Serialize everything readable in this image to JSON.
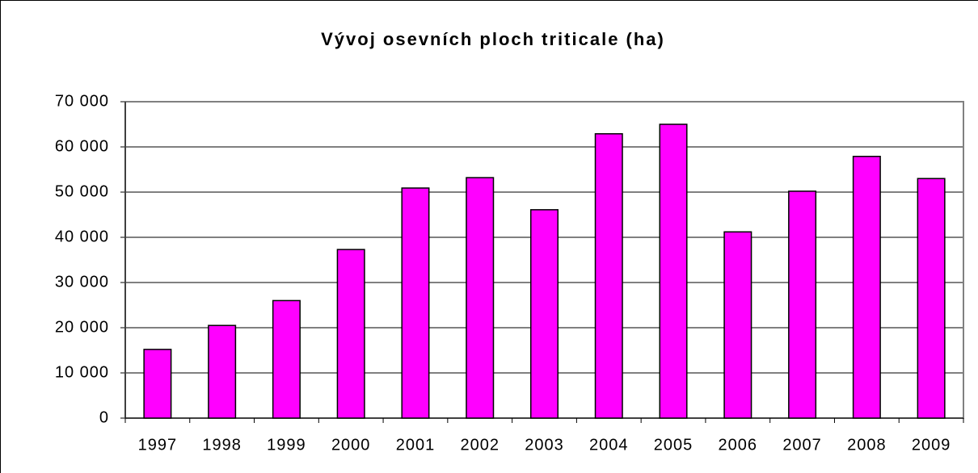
{
  "chart_data": {
    "type": "bar",
    "title": "Vývoj osevních ploch triticale (ha)",
    "categories": [
      "1997",
      "1998",
      "1999",
      "2000",
      "2001",
      "2002",
      "2003",
      "2004",
      "2005",
      "2006",
      "2007",
      "2008",
      "2009"
    ],
    "values": [
      15200,
      20500,
      26000,
      37300,
      50900,
      53200,
      46100,
      62900,
      65000,
      41200,
      50200,
      57900,
      53000
    ],
    "color": "#ff00ff",
    "ylim": [
      0,
      70000
    ],
    "yticks": [
      0,
      {
        "value": 10000,
        "label": "10 000"
      },
      {
        "value": 20000,
        "label": "20 000"
      },
      {
        "value": 30000,
        "label": "30 000"
      },
      {
        "value": 40000,
        "label": "40 000"
      },
      {
        "value": 50000,
        "label": "50 000"
      },
      {
        "value": 60000,
        "label": "60 000"
      },
      {
        "value": 70000,
        "label": "70 000"
      }
    ],
    "grid": true
  }
}
